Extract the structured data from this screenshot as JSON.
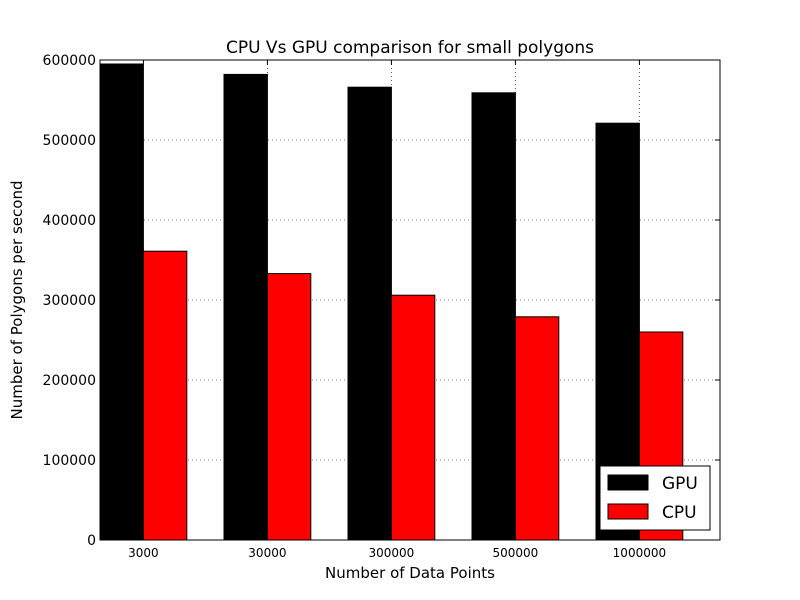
{
  "chart_data": {
    "type": "bar",
    "title": "CPU Vs GPU comparison for small polygons",
    "xlabel": "Number of Data Points",
    "ylabel": "Number of Polygons per second",
    "categories": [
      "3000",
      "30000",
      "300000",
      "500000",
      "1000000"
    ],
    "series": [
      {
        "name": "GPU",
        "values": [
          595000,
          582000,
          566000,
          559000,
          521000
        ],
        "color": "#000000"
      },
      {
        "name": "CPU",
        "values": [
          361000,
          333000,
          306000,
          279000,
          260000
        ],
        "color": "#ff0000"
      }
    ],
    "ylim": [
      0,
      600000
    ],
    "yticks": [
      "0",
      "100000",
      "200000",
      "300000",
      "400000",
      "500000",
      "600000"
    ],
    "grid": true,
    "legend_position": "lower-right"
  }
}
